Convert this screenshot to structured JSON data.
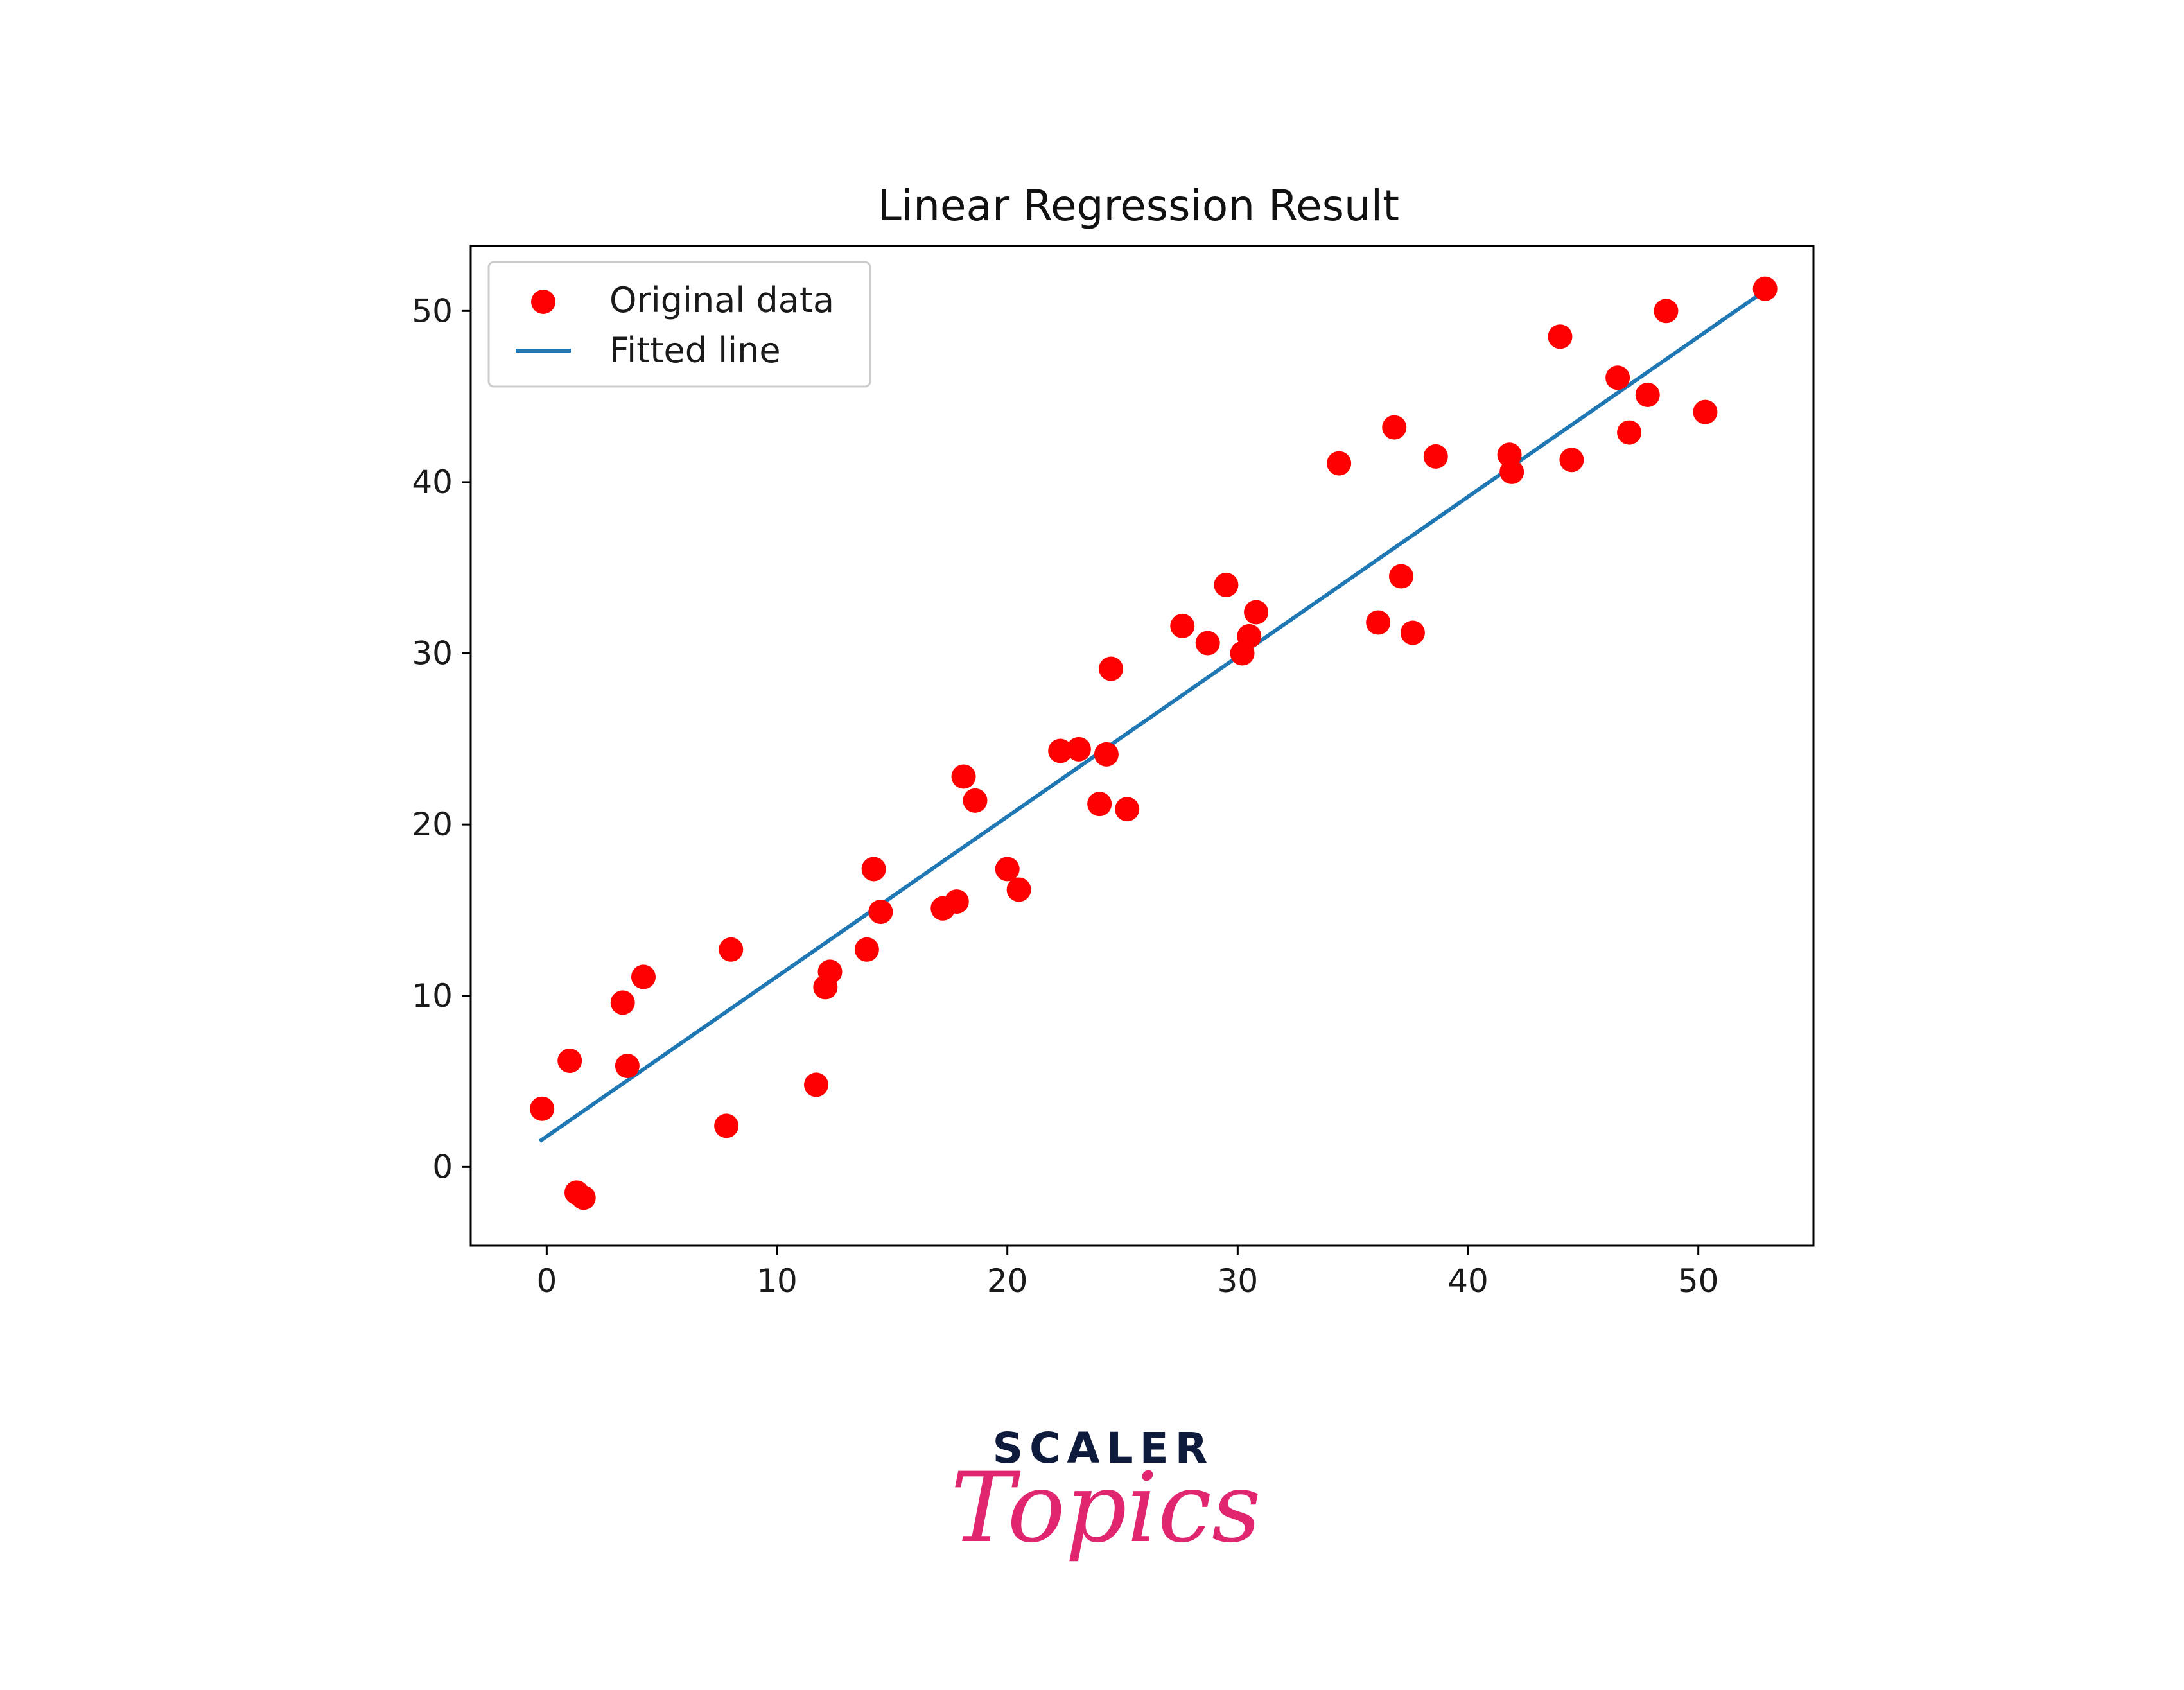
{
  "chart_data": {
    "type": "scatter",
    "title": "Linear Regression Result",
    "xlabel": "",
    "ylabel": "",
    "xlim": [
      -3.3,
      55.0
    ],
    "ylim": [
      -4.6,
      53.8
    ],
    "xticks": [
      0,
      10,
      20,
      30,
      40,
      50
    ],
    "yticks": [
      0,
      10,
      20,
      30,
      40,
      50
    ],
    "grid": false,
    "legend_position": "top-left",
    "series": [
      {
        "name": "Original data",
        "kind": "scatter",
        "color": "#ff0000",
        "points": [
          [
            -0.2,
            3.4
          ],
          [
            1.0,
            6.2
          ],
          [
            1.3,
            -1.5
          ],
          [
            1.6,
            -1.8
          ],
          [
            3.3,
            9.6
          ],
          [
            3.5,
            5.9
          ],
          [
            4.2,
            11.1
          ],
          [
            7.8,
            2.4
          ],
          [
            8.0,
            12.7
          ],
          [
            11.7,
            4.8
          ],
          [
            12.1,
            10.5
          ],
          [
            12.3,
            11.4
          ],
          [
            13.9,
            12.7
          ],
          [
            14.2,
            17.4
          ],
          [
            14.5,
            14.9
          ],
          [
            17.2,
            15.1
          ],
          [
            17.8,
            15.5
          ],
          [
            18.1,
            22.8
          ],
          [
            18.6,
            21.4
          ],
          [
            20.0,
            17.4
          ],
          [
            20.5,
            16.2
          ],
          [
            22.3,
            24.3
          ],
          [
            23.1,
            24.4
          ],
          [
            24.0,
            21.2
          ],
          [
            24.3,
            24.1
          ],
          [
            24.5,
            29.1
          ],
          [
            25.2,
            20.9
          ],
          [
            27.6,
            31.6
          ],
          [
            28.7,
            30.6
          ],
          [
            29.5,
            34.0
          ],
          [
            30.2,
            30.0
          ],
          [
            30.5,
            31.0
          ],
          [
            30.8,
            32.4
          ],
          [
            34.4,
            41.1
          ],
          [
            36.1,
            31.8
          ],
          [
            36.8,
            43.2
          ],
          [
            37.1,
            34.5
          ],
          [
            37.6,
            31.2
          ],
          [
            38.6,
            41.5
          ],
          [
            41.8,
            41.6
          ],
          [
            41.9,
            40.6
          ],
          [
            44.0,
            48.5
          ],
          [
            44.5,
            41.3
          ],
          [
            46.5,
            46.1
          ],
          [
            47.0,
            42.9
          ],
          [
            47.8,
            45.1
          ],
          [
            48.6,
            50.0
          ],
          [
            50.3,
            44.1
          ],
          [
            52.9,
            51.3
          ]
        ]
      },
      {
        "name": "Fitted line",
        "kind": "line",
        "color": "#1f77b4",
        "points": [
          [
            -0.3,
            1.5
          ],
          [
            52.8,
            51.1
          ]
        ]
      }
    ]
  },
  "brand": {
    "top": "SCALER",
    "bottom": "Topics",
    "top_color": "#0f1b3d",
    "bottom_color": "#e0266f"
  }
}
